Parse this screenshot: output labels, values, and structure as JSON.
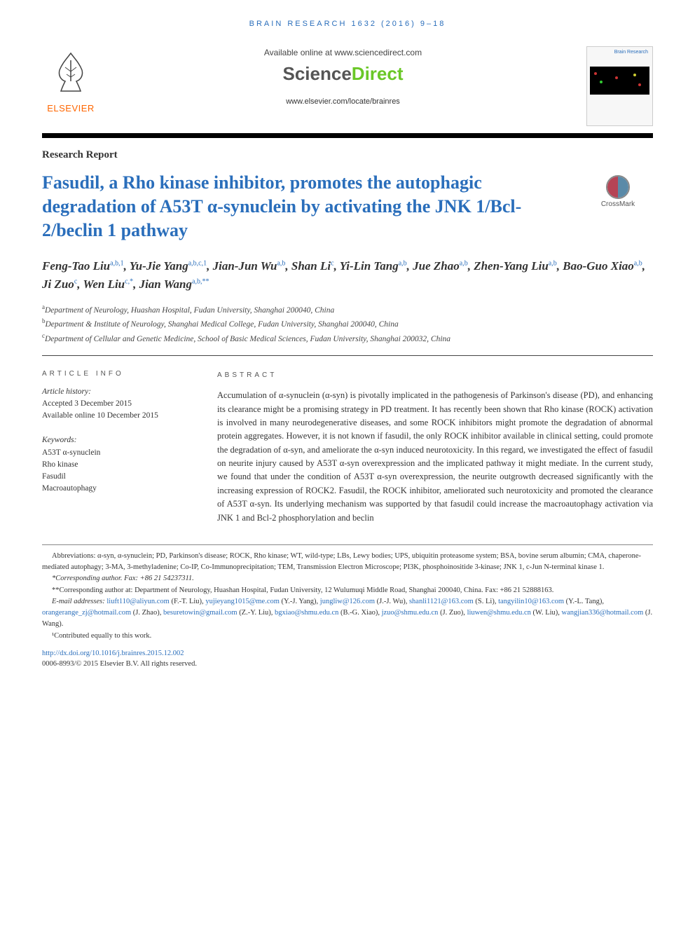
{
  "running_head": "BRAIN RESEARCH 1632 (2016) 9–18",
  "header": {
    "available_line": "Available online at www.sciencedirect.com",
    "sd_logo_left": "Science",
    "sd_logo_right": "Direct",
    "journal_url": "www.elsevier.com/locate/brainres",
    "elsevier_word": "ELSEVIER",
    "cover_title": "Brain Research"
  },
  "article_type": "Research Report",
  "title": "Fasudil, a Rho kinase inhibitor, promotes the autophagic degradation of A53T α-synuclein by activating the JNK 1/Bcl-2/beclin 1 pathway",
  "crossmark_label": "CrossMark",
  "authors_html": "Feng-Tao Liu<sup class='sup'>a,b,1</sup>, Yu-Jie Yang<sup class='sup'>a,b,c,1</sup>, Jian-Jun Wu<sup class='sup'>a,b</sup>, Shan Li<sup class='sup'>c</sup>, Yi-Lin Tang<sup class='sup'>a,b</sup>, Jue Zhao<sup class='sup'>a,b</sup>, Zhen-Yang Liu<sup class='sup'>a,b</sup>, Bao-Guo Xiao<sup class='sup'>a,b</sup>, Ji Zuo<sup class='sup'>c</sup>, Wen Liu<sup class='sup'>c,*</sup>, Jian Wang<sup class='sup'>a,b,**</sup>",
  "affiliations": [
    {
      "sup": "a",
      "text": "Department of Neurology, Huashan Hospital, Fudan University, Shanghai 200040, China"
    },
    {
      "sup": "b",
      "text": "Department & Institute of Neurology, Shanghai Medical College, Fudan University, Shanghai 200040, China"
    },
    {
      "sup": "c",
      "text": "Department of Cellular and Genetic Medicine, School of Basic Medical Sciences, Fudan University, Shanghai 200032, China"
    }
  ],
  "info": {
    "head": "ARTICLE INFO",
    "history_label": "Article history:",
    "accepted": "Accepted 3 December 2015",
    "online": "Available online 10 December 2015",
    "keywords_label": "Keywords:",
    "keywords": [
      "A53T α-synuclein",
      "Rho kinase",
      "Fasudil",
      "Macroautophagy"
    ]
  },
  "abstract": {
    "head": "ABSTRACT",
    "text": "Accumulation of α-synuclein (α-syn) is pivotally implicated in the pathogenesis of Parkinson's disease (PD), and enhancing its clearance might be a promising strategy in PD treatment. It has recently been shown that Rho kinase (ROCK) activation is involved in many neurodegenerative diseases, and some ROCK inhibitors might promote the degradation of abnormal protein aggregates. However, it is not known if fasudil, the only ROCK inhibitor available in clinical setting, could promote the degradation of α-syn, and ameliorate the α-syn induced neurotoxicity. In this regard, we investigated the effect of fasudil on neurite injury caused by A53T α-syn overexpression and the implicated pathway it might mediate. In the current study, we found that under the condition of A53T α-syn overexpression, the neurite outgrowth decreased significantly with the increasing expression of ROCK2. Fasudil, the ROCK inhibitor, ameliorated such neurotoxicity and promoted the clearance of A53T α-syn. Its underlying mechanism was supported by that fasudil could increase the macroautophagy activation via JNK 1 and Bcl-2 phosphorylation and beclin"
  },
  "footnotes": {
    "abbrev": "Abbreviations: α-syn,  α-synuclein; PD,  Parkinson's disease; ROCK,  Rho kinase; WT,  wild-type; LBs,  Lewy bodies; UPS,  ubiquitin proteasome system; BSA,  bovine serum albumin; CMA,  chaperone-mediated autophagy; 3-MA,  3-methyladenine; Co-IP,  Co-Immunoprecipitation; TEM,  Transmission Electron Microscope; PI3K,  phosphoinositide 3-kinase; JNK 1,  c-Jun N-terminal kinase 1.",
    "corr1": "*Corresponding author. Fax: +86 21 54237311.",
    "corr2": "**Corresponding author at: Department of Neurology, Huashan Hospital, Fudan University, 12 Wulumuqi Middle Road, Shanghai 200040, China. Fax: +86 21 52888163.",
    "emails_label": "E-mail addresses: ",
    "emails": [
      {
        "addr": "liuft110@aliyun.com",
        "who": "(F.-T. Liu)"
      },
      {
        "addr": "yujieyang1015@me.com",
        "who": "(Y.-J. Yang)"
      },
      {
        "addr": "jungliw@126.com",
        "who": "(J.-J. Wu)"
      },
      {
        "addr": "shanli1121@163.com",
        "who": "(S. Li)"
      },
      {
        "addr": "tangyilin10@163.com",
        "who": "(Y.-L. Tang)"
      },
      {
        "addr": "orangerange_zj@hotmail.com",
        "who": "(J. Zhao)"
      },
      {
        "addr": "besuretowin@gmail.com",
        "who": "(Z.-Y. Liu)"
      },
      {
        "addr": "bgxiao@shmu.edu.cn",
        "who": "(B.-G. Xiao)"
      },
      {
        "addr": "jzuo@shmu.edu.cn",
        "who": "(J. Zuo)"
      },
      {
        "addr": "liuwen@shmu.edu.cn",
        "who": "(W. Liu)"
      },
      {
        "addr": "wangjian336@hotmail.com",
        "who": "(J. Wang)"
      }
    ],
    "contrib": "¹Contributed equally to this work.",
    "doi": "http://dx.doi.org/10.1016/j.brainres.2015.12.002",
    "copyright": "0006-8993/© 2015 Elsevier B.V. All rights reserved."
  },
  "colors": {
    "link": "#2a6ebb",
    "orange": "#ff6600",
    "sd_green": "#6ac727"
  }
}
